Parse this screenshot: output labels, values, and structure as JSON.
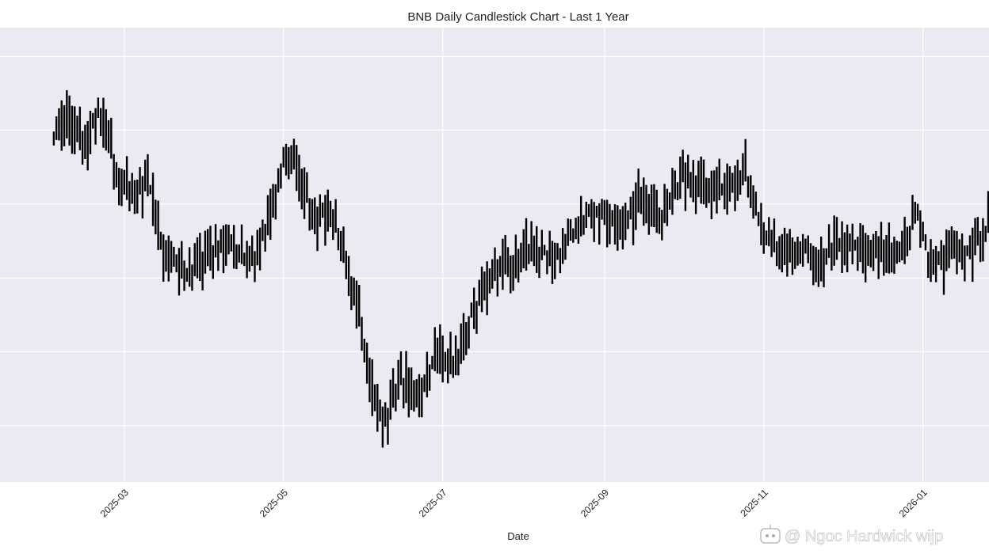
{
  "chart_data": {
    "type": "candlestick",
    "title": "BNB Daily Candlestick Chart - Last 1 Year",
    "xlabel": "Date",
    "ylabel": "",
    "x_range": [
      "2025-01-30",
      "2026-01-26"
    ],
    "y_range": [
      0,
      1
    ],
    "grid": true,
    "background": "#eaeaf2",
    "grid_color": "#ffffff",
    "candle_color": "#000000",
    "x_ticks": [
      {
        "date": "2025-03-01",
        "label": "2025-03"
      },
      {
        "date": "2025-05-01",
        "label": "2025-05"
      },
      {
        "date": "2025-07-01",
        "label": "2025-07"
      },
      {
        "date": "2025-09-01",
        "label": "2025-09"
      },
      {
        "date": "2025-11-01",
        "label": "2025-11"
      },
      {
        "date": "2026-01-01",
        "label": "2026-01"
      }
    ],
    "y_gridlines": [
      0.111,
      0.278,
      0.444,
      0.611,
      0.778,
      0.944
    ],
    "y_tick_labels": [],
    "anchors": [
      [
        "2025-02-02",
        0.77
      ],
      [
        "2025-02-08",
        0.8
      ],
      [
        "2025-02-14",
        0.75
      ],
      [
        "2025-02-19",
        0.81
      ],
      [
        "2025-02-22",
        0.8
      ],
      [
        "2025-02-26",
        0.68
      ],
      [
        "2025-03-05",
        0.63
      ],
      [
        "2025-03-10",
        0.66
      ],
      [
        "2025-03-16",
        0.51
      ],
      [
        "2025-03-25",
        0.45
      ],
      [
        "2025-04-04",
        0.51
      ],
      [
        "2025-04-10",
        0.52
      ],
      [
        "2025-04-14",
        0.5
      ],
      [
        "2025-04-20",
        0.48
      ],
      [
        "2025-04-26",
        0.6
      ],
      [
        "2025-04-30",
        0.69
      ],
      [
        "2025-05-05",
        0.72
      ],
      [
        "2025-05-12",
        0.58
      ],
      [
        "2025-05-20",
        0.58
      ],
      [
        "2025-05-25",
        0.48
      ],
      [
        "2025-05-30",
        0.37
      ],
      [
        "2025-06-03",
        0.22
      ],
      [
        "2025-06-08",
        0.11
      ],
      [
        "2025-06-15",
        0.22
      ],
      [
        "2025-06-22",
        0.17
      ],
      [
        "2025-06-28",
        0.28
      ],
      [
        "2025-07-05",
        0.24
      ],
      [
        "2025-07-12",
        0.36
      ],
      [
        "2025-07-18",
        0.43
      ],
      [
        "2025-07-25",
        0.48
      ],
      [
        "2025-08-04",
        0.51
      ],
      [
        "2025-08-12",
        0.49
      ],
      [
        "2025-08-22",
        0.57
      ],
      [
        "2025-08-29",
        0.59
      ],
      [
        "2025-09-10",
        0.57
      ],
      [
        "2025-09-15",
        0.63
      ],
      [
        "2025-09-22",
        0.58
      ],
      [
        "2025-10-01",
        0.67
      ],
      [
        "2025-10-12",
        0.64
      ],
      [
        "2025-10-20",
        0.66
      ],
      [
        "2025-10-25",
        0.68
      ],
      [
        "2025-10-30",
        0.57
      ],
      [
        "2025-11-04",
        0.53
      ],
      [
        "2025-11-16",
        0.5
      ],
      [
        "2025-11-22",
        0.48
      ],
      [
        "2025-11-28",
        0.52
      ],
      [
        "2025-12-06",
        0.51
      ],
      [
        "2025-12-15",
        0.51
      ],
      [
        "2025-12-22",
        0.49
      ],
      [
        "2025-12-30",
        0.58
      ],
      [
        "2026-01-03",
        0.5
      ],
      [
        "2026-01-08",
        0.47
      ],
      [
        "2026-01-15",
        0.52
      ],
      [
        "2026-01-20",
        0.5
      ],
      [
        "2026-01-26",
        0.58
      ]
    ]
  },
  "watermark": {
    "text": "@ Ngoc Hardwick wijp",
    "icon": "bot-icon"
  }
}
